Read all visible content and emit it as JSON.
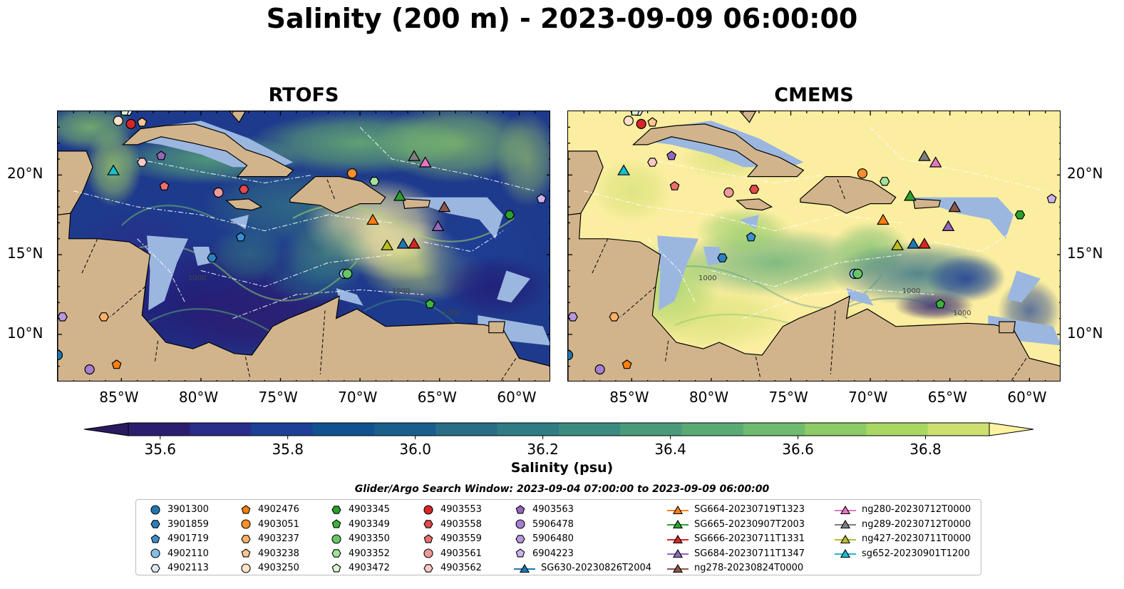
{
  "title": "Salinity (200 m) - 2023-09-09 06:00:00",
  "panels": [
    {
      "title": "RTOFS",
      "mode": "rtofs"
    },
    {
      "title": "CMEMS",
      "mode": "cmems"
    }
  ],
  "map": {
    "lon_range": [
      -89,
      -58
    ],
    "lat_range": [
      7,
      24
    ],
    "x_ticks": [
      "85°W",
      "80°W",
      "75°W",
      "70°W",
      "65°W",
      "60°W"
    ],
    "x_tick_values": [
      -85,
      -80,
      -75,
      -70,
      -65,
      -60
    ],
    "y_ticks": [
      "20°N",
      "15°N",
      "10°N"
    ],
    "y_tick_values": [
      20,
      15,
      10
    ],
    "contour_labels": [
      "1000",
      "1000",
      "1000"
    ],
    "colors": {
      "land": "#d2b48c",
      "shelf": "#9bb7e0",
      "deep": "#2a1a6b"
    }
  },
  "colorbar": {
    "label": "Salinity (psu)",
    "ticks": [
      "35.6",
      "35.8",
      "36.0",
      "36.2",
      "36.4",
      "36.6",
      "36.8"
    ],
    "tick_values": [
      35.6,
      35.8,
      36.0,
      36.2,
      36.4,
      36.6,
      36.8
    ],
    "range": [
      35.55,
      36.9
    ],
    "colors": [
      "#2b1e6e",
      "#2b2d8a",
      "#1d3f95",
      "#12518f",
      "#1a5f8c",
      "#2a6d86",
      "#2f7c84",
      "#3a8b80",
      "#4a9a7c",
      "#5aaa76",
      "#6fba6e",
      "#8ccb66",
      "#a9d763",
      "#cddf6f"
    ],
    "under_color": "#291b5e",
    "over_color": "#fdf3a0"
  },
  "search_window": "Glider/Argo Search Window: 2023-09-04 07:00:00 to 2023-09-09 06:00:00",
  "legend": [
    {
      "label": "3901300",
      "marker": "circle",
      "color": "#1f77b4"
    },
    {
      "label": "3901859",
      "marker": "hexagon",
      "color": "#2d7fc0"
    },
    {
      "label": "4901719",
      "marker": "pentagon",
      "color": "#3c8ed3"
    },
    {
      "label": "4902110",
      "marker": "circle",
      "color": "#86bde6"
    },
    {
      "label": "4902113",
      "marker": "hexagon",
      "color": "#dce8f6"
    },
    {
      "label": "4902476",
      "marker": "pentagon",
      "color": "#ff7f0e"
    },
    {
      "label": "4903051",
      "marker": "circle",
      "color": "#ff8f2a"
    },
    {
      "label": "4903237",
      "marker": "hexagon",
      "color": "#ffb366"
    },
    {
      "label": "4903238",
      "marker": "pentagon",
      "color": "#ffc690"
    },
    {
      "label": "4903250",
      "marker": "circle",
      "color": "#ffe3c8"
    },
    {
      "label": "4903345",
      "marker": "hexagon",
      "color": "#2ca02c"
    },
    {
      "label": "4903349",
      "marker": "pentagon",
      "color": "#3cb43c"
    },
    {
      "label": "4903350",
      "marker": "circle",
      "color": "#65c865"
    },
    {
      "label": "4903352",
      "marker": "hexagon",
      "color": "#a2e19a"
    },
    {
      "label": "4903472",
      "marker": "pentagon",
      "color": "#d8f5cf"
    },
    {
      "label": "4903553",
      "marker": "circle",
      "color": "#d62728"
    },
    {
      "label": "4903558",
      "marker": "hexagon",
      "color": "#e24a4b"
    },
    {
      "label": "4903559",
      "marker": "pentagon",
      "color": "#ec6f6f"
    },
    {
      "label": "4903561",
      "marker": "circle",
      "color": "#f19a9a"
    },
    {
      "label": "4903562",
      "marker": "hexagon",
      "color": "#f8c9c6"
    },
    {
      "label": "4903563",
      "marker": "pentagon",
      "color": "#9467bd"
    },
    {
      "label": "5906478",
      "marker": "circle",
      "color": "#a57fd0"
    },
    {
      "label": "5906480",
      "marker": "hexagon",
      "color": "#b897e0"
    },
    {
      "label": "6904223",
      "marker": "pentagon",
      "color": "#cdb3ee"
    },
    {
      "label": "SG630-20230826T2004",
      "marker": "triangle",
      "color": "#1f77b4",
      "line": true
    },
    {
      "label": "SG664-20230719T1323",
      "marker": "triangle",
      "color": "#ff7f0e",
      "line": true
    },
    {
      "label": "SG665-20230907T2003",
      "marker": "triangle",
      "color": "#2ca02c",
      "line": true
    },
    {
      "label": "SG666-20230711T1331",
      "marker": "triangle",
      "color": "#d62728",
      "line": true
    },
    {
      "label": "SG684-20230711T1347",
      "marker": "triangle",
      "color": "#9467bd",
      "line": true
    },
    {
      "label": "ng278-20230824T0000",
      "marker": "triangle",
      "color": "#8c564b",
      "line": true
    },
    {
      "label": "ng280-20230712T0000",
      "marker": "triangle",
      "color": "#e377c2",
      "line": true
    },
    {
      "label": "ng289-20230712T0000",
      "marker": "triangle",
      "color": "#7f7f7f",
      "line": true
    },
    {
      "label": "ng427-20230711T0000",
      "marker": "triangle",
      "color": "#bcbd22",
      "line": true
    },
    {
      "label": "sg652-20230901T1200",
      "marker": "triangle",
      "color": "#17becf",
      "line": true
    }
  ],
  "observations": [
    {
      "id": "3901300",
      "lon": -89.0,
      "lat": 8.7
    },
    {
      "id": "3901859",
      "lon": -79.3,
      "lat": 14.8
    },
    {
      "id": "4901719",
      "lon": -77.5,
      "lat": 16.1
    },
    {
      "id": "4902110",
      "lon": -71.0,
      "lat": 13.8
    },
    {
      "id": "4902113",
      "lon": -84.6,
      "lat": 24.0
    },
    {
      "id": "4902476",
      "lon": -85.3,
      "lat": 8.1
    },
    {
      "id": "4903051",
      "lon": -70.5,
      "lat": 20.1
    },
    {
      "id": "4903237",
      "lon": -86.1,
      "lat": 11.1
    },
    {
      "id": "4903238",
      "lon": -83.7,
      "lat": 23.3
    },
    {
      "id": "4903250",
      "lon": -85.2,
      "lat": 23.4
    },
    {
      "id": "4903345",
      "lon": -60.6,
      "lat": 17.5
    },
    {
      "id": "4903349",
      "lon": -65.6,
      "lat": 11.9
    },
    {
      "id": "4903350",
      "lon": -70.8,
      "lat": 13.8
    },
    {
      "id": "4903352",
      "lon": -69.1,
      "lat": 19.6
    },
    {
      "id": "4903472",
      "lon": -84.8,
      "lat": 24.0
    },
    {
      "id": "4903553",
      "lon": -84.4,
      "lat": 23.2
    },
    {
      "id": "4903558",
      "lon": -77.3,
      "lat": 19.1
    },
    {
      "id": "4903559",
      "lon": -82.3,
      "lat": 19.3
    },
    {
      "id": "4903561",
      "lon": -78.9,
      "lat": 18.9
    },
    {
      "id": "4903562",
      "lon": -83.7,
      "lat": 20.8
    },
    {
      "id": "4903563",
      "lon": -82.5,
      "lat": 21.2
    },
    {
      "id": "5906478",
      "lon": -87.0,
      "lat": 7.8
    },
    {
      "id": "5906480",
      "lon": -88.7,
      "lat": 11.1
    },
    {
      "id": "6904223",
      "lon": -58.6,
      "lat": 18.5
    },
    {
      "id": "SG630-20230826T2004",
      "lon": -67.3,
      "lat": 15.7
    },
    {
      "id": "SG664-20230719T1323",
      "lon": -69.2,
      "lat": 17.2
    },
    {
      "id": "SG665-20230907T2003",
      "lon": -67.5,
      "lat": 18.7
    },
    {
      "id": "SG666-20230711T1331",
      "lon": -66.6,
      "lat": 15.7
    },
    {
      "id": "SG684-20230711T1347",
      "lon": -65.1,
      "lat": 16.8
    },
    {
      "id": "ng278-20230824T0000",
      "lon": -64.7,
      "lat": 18.0
    },
    {
      "id": "ng280-20230712T0000",
      "lon": -65.9,
      "lat": 20.8
    },
    {
      "id": "ng289-20230712T0000",
      "lon": -66.6,
      "lat": 21.2
    },
    {
      "id": "ng427-20230711T0000",
      "lon": -68.3,
      "lat": 15.6
    },
    {
      "id": "sg652-20230901T1200",
      "lon": -85.5,
      "lat": 20.3
    }
  ]
}
